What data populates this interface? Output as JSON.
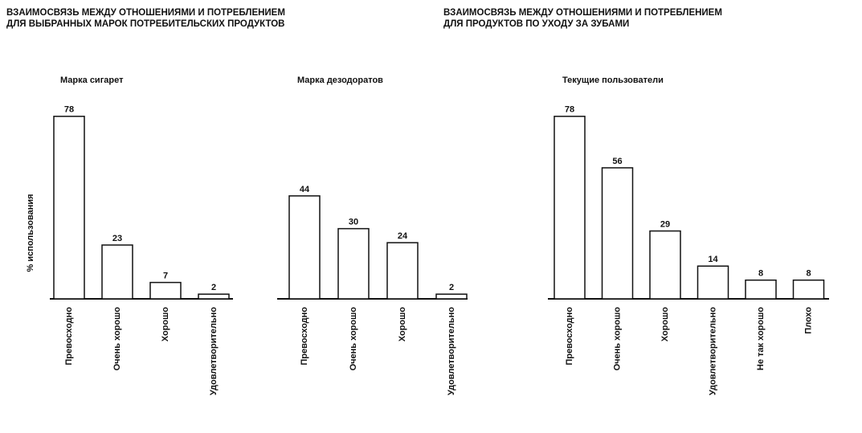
{
  "headers": [
    [
      "ВЗАИМОСВЯЗЬ МЕЖДУ ОТНОШЕНИЯМИ И ПОТРЕБЛЕНИЕМ",
      "ДЛЯ ВЫБРАННЫХ МАРОК ПОТРЕБИТЕЛЬСКИХ ПРОДУКТОВ"
    ],
    [
      "ВЗАИМОСВЯЗЬ МЕЖДУ ОТНОШЕНИЯМИ И ПОТРЕБЛЕНИЕМ",
      "ДЛЯ ПРОДУКТОВ ПО УХОДУ ЗА ЗУБАМИ"
    ]
  ],
  "chart_data": [
    {
      "type": "bar",
      "title": "Марка сигарет",
      "ylabel": "% использования",
      "categories": [
        "Превосходно",
        "Очень хорошо",
        "Хорошо",
        "Удовлетворительно"
      ],
      "values": [
        78,
        23,
        7,
        2
      ],
      "color": "#ffffff",
      "ylim": [
        0,
        80
      ]
    },
    {
      "type": "bar",
      "title": "Марка дезодоратов",
      "categories": [
        "Превосходно",
        "Очень хорошо",
        "Хорошо",
        "Удовлетворительно"
      ],
      "values": [
        44,
        30,
        24,
        2
      ],
      "color": "#ffffff",
      "ylim": [
        0,
        80
      ]
    },
    {
      "type": "bar",
      "title": "Текущие пользователи",
      "categories": [
        "Превосходно",
        "Очень хорошо",
        "Хорошо",
        "Удовлетворительно",
        "Не так хорошо",
        "Плохо"
      ],
      "values": [
        78,
        56,
        29,
        14,
        8,
        8
      ],
      "color": "#ffffff",
      "ylim": [
        0,
        80
      ]
    }
  ]
}
